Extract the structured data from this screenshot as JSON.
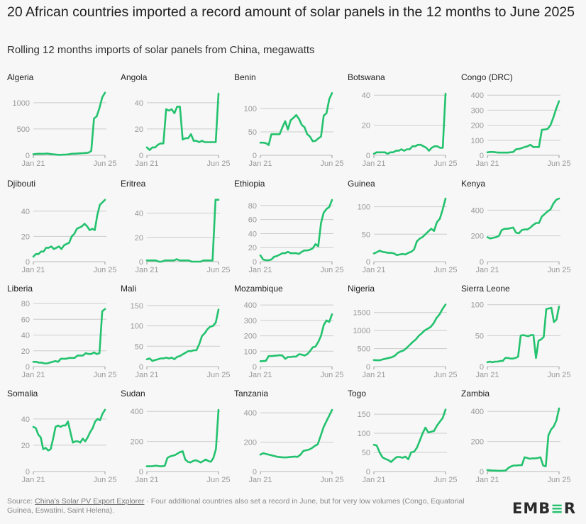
{
  "title": "20 African countries imported a record amount of solar panels in the 12 months to June 2025",
  "subtitle": "Rolling 12 months imports of solar panels from China, megawatts",
  "footer": {
    "source_prefix": "Source: ",
    "source_link": "China's Solar PV Export Explorer",
    "note": " · Four additional countries also set a record in June, but for very low volumes (Congo, Equatorial Guinea, Eswatini, Saint Helena)."
  },
  "logo": {
    "pre": "EMB",
    "mid": "≡",
    "post": "R"
  },
  "colors": {
    "line": "#23c26e",
    "grid": "#cccccc",
    "tick": "#999999",
    "background": "#f7f7f7"
  },
  "chart_data": {
    "type": "line",
    "layout": "small-multiples",
    "x_start": "Jan 21",
    "x_end": "Jun 25",
    "x_tick_labels": [
      "Jan 21",
      "Jun 25"
    ],
    "unit": "MW",
    "panels": [
      {
        "name": "Algeria",
        "yticks": [
          0,
          500,
          1000
        ],
        "ymax": 1200,
        "values": [
          20,
          25,
          30,
          28,
          30,
          32,
          25,
          20,
          15,
          10,
          10,
          12,
          15,
          20,
          30,
          30,
          35,
          38,
          40,
          45,
          50,
          80,
          700,
          740,
          900,
          1100,
          1190
        ]
      },
      {
        "name": "Angola",
        "yticks": [
          0,
          20,
          40
        ],
        "ymax": 48,
        "values": [
          6,
          4,
          6,
          6,
          8,
          9,
          9,
          35,
          34,
          35,
          32,
          37,
          37,
          12,
          13,
          13,
          16,
          11,
          11,
          10,
          11,
          10,
          10,
          10,
          10,
          10,
          47
        ]
      },
      {
        "name": "Benin",
        "yticks": [
          0,
          50,
          100
        ],
        "ymax": 135,
        "values": [
          27,
          27,
          26,
          22,
          45,
          45,
          45,
          45,
          60,
          73,
          55,
          75,
          80,
          86,
          78,
          65,
          60,
          45,
          40,
          30,
          31,
          36,
          40,
          85,
          90,
          120,
          133
        ]
      },
      {
        "name": "Botswana",
        "yticks": [
          0,
          20,
          40
        ],
        "ymax": 42,
        "values": [
          1,
          2,
          2,
          2,
          2,
          1,
          2,
          2,
          3,
          3,
          4,
          3,
          4,
          4,
          6,
          6,
          7,
          7,
          6,
          5,
          3,
          5,
          6,
          6,
          5,
          5,
          41
        ]
      },
      {
        "name": "Congo (DRC)",
        "yticks": [
          0,
          100,
          200,
          300,
          400
        ],
        "ymax": 420,
        "values": [
          20,
          22,
          22,
          20,
          18,
          18,
          18,
          18,
          20,
          22,
          40,
          42,
          48,
          55,
          60,
          70,
          55,
          55,
          55,
          170,
          172,
          175,
          200,
          250,
          310,
          360
        ]
      },
      {
        "name": "Djibouti",
        "yticks": [
          0,
          20,
          40
        ],
        "ymax": 50,
        "values": [
          4,
          6,
          6,
          8,
          8,
          11,
          11,
          12,
          10,
          11,
          12,
          10,
          13,
          14,
          15,
          20,
          22,
          26,
          27,
          28,
          30,
          28,
          25,
          26,
          25,
          37,
          45,
          47,
          49
        ]
      },
      {
        "name": "Eritrea",
        "yticks": [
          0,
          20,
          40
        ],
        "ymax": 52,
        "values": [
          1,
          1,
          1,
          1,
          0,
          0,
          1,
          1,
          1,
          1,
          2,
          1,
          1,
          1,
          1,
          0,
          0,
          0,
          0,
          1,
          1,
          1,
          1,
          51,
          51
        ]
      },
      {
        "name": "Ethiopia",
        "yticks": [
          0,
          20,
          40,
          60,
          80
        ],
        "ymax": 90,
        "values": [
          9,
          3,
          2,
          2,
          3,
          7,
          8,
          10,
          12,
          12,
          14,
          12,
          12,
          12,
          11,
          14,
          16,
          16,
          17,
          19,
          25,
          22,
          55,
          70,
          75,
          78,
          88
        ]
      },
      {
        "name": "Guinea",
        "yticks": [
          0,
          50,
          100
        ],
        "ymax": 115,
        "values": [
          15,
          17,
          20,
          18,
          17,
          16,
          16,
          15,
          12,
          13,
          14,
          13,
          16,
          18,
          22,
          37,
          42,
          45,
          50,
          55,
          60,
          56,
          72,
          78,
          95,
          115
        ]
      },
      {
        "name": "Kenya",
        "yticks": [
          0,
          200,
          400
        ],
        "ymax": 490,
        "values": [
          190,
          180,
          185,
          190,
          200,
          245,
          255,
          255,
          260,
          265,
          225,
          220,
          245,
          250,
          250,
          265,
          285,
          300,
          300,
          350,
          370,
          390,
          405,
          450,
          480,
          490
        ]
      },
      {
        "name": "Liberia",
        "yticks": [
          0,
          20,
          40,
          60,
          80
        ],
        "ymax": 80,
        "values": [
          6,
          6,
          5,
          5,
          4,
          4,
          5,
          6,
          7,
          6,
          10,
          10,
          10,
          11,
          11,
          11,
          14,
          14,
          14,
          17,
          16,
          16,
          18,
          16,
          17,
          70,
          73
        ]
      },
      {
        "name": "Mali",
        "yticks": [
          0,
          50,
          100,
          150
        ],
        "ymax": 155,
        "values": [
          18,
          20,
          14,
          16,
          18,
          20,
          20,
          22,
          20,
          22,
          18,
          24,
          26,
          30,
          34,
          38,
          38,
          40,
          40,
          55,
          75,
          82,
          92,
          98,
          100,
          108,
          140
        ]
      },
      {
        "name": "Mozambique",
        "yticks": [
          0,
          100,
          200,
          300,
          400
        ],
        "ymax": 410,
        "values": [
          35,
          36,
          38,
          68,
          68,
          70,
          72,
          74,
          72,
          50,
          62,
          62,
          65,
          65,
          80,
          78,
          72,
          80,
          100,
          125,
          130,
          160,
          200,
          270,
          300,
          290,
          340
        ]
      },
      {
        "name": "Nigeria",
        "yticks": [
          0,
          500,
          1000,
          1500
        ],
        "ymax": 1750,
        "values": [
          180,
          175,
          175,
          200,
          220,
          240,
          260,
          300,
          380,
          420,
          450,
          520,
          600,
          680,
          750,
          850,
          920,
          1000,
          1050,
          1100,
          1200,
          1350,
          1450,
          1600,
          1720
        ]
      },
      {
        "name": "Sierra Leone",
        "yticks": [
          0,
          50,
          100
        ],
        "ymax": 102,
        "values": [
          7,
          8,
          7,
          8,
          8,
          9,
          9,
          14,
          14,
          13,
          13,
          14,
          16,
          50,
          51,
          50,
          49,
          51,
          51,
          14,
          42,
          44,
          48,
          93,
          94,
          95,
          72,
          76,
          97
        ]
      },
      {
        "name": "Somalia",
        "yticks": [
          0,
          20,
          40
        ],
        "ymax": 48,
        "values": [
          34,
          33,
          28,
          26,
          17,
          18,
          16,
          17,
          25,
          34,
          35,
          34,
          35,
          35,
          38,
          30,
          22,
          23,
          23,
          22,
          25,
          23,
          26,
          30,
          33,
          38,
          40,
          39,
          44,
          47
        ]
      },
      {
        "name": "Sudan",
        "yticks": [
          0,
          200,
          400
        ],
        "ymax": 420,
        "values": [
          35,
          35,
          35,
          38,
          38,
          35,
          35,
          38,
          90,
          100,
          105,
          110,
          120,
          130,
          135,
          80,
          65,
          60,
          70,
          75,
          70,
          60,
          70,
          80,
          70,
          65,
          90,
          150,
          410
        ]
      },
      {
        "name": "Tanzania",
        "yticks": [
          0,
          200,
          400
        ],
        "ymax": 430,
        "values": [
          115,
          125,
          120,
          115,
          110,
          105,
          100,
          98,
          96,
          96,
          98,
          100,
          102,
          100,
          115,
          140,
          145,
          150,
          160,
          175,
          185,
          240,
          300,
          340,
          380,
          420
        ]
      },
      {
        "name": "Togo",
        "yticks": [
          0,
          50,
          100,
          150
        ],
        "ymax": 165,
        "values": [
          70,
          68,
          50,
          37,
          33,
          30,
          25,
          32,
          38,
          38,
          36,
          39,
          32,
          50,
          52,
          62,
          80,
          100,
          115,
          102,
          104,
          106,
          120,
          130,
          140,
          162
        ]
      },
      {
        "name": "Zambia",
        "yticks": [
          0,
          200,
          400
        ],
        "ymax": 420,
        "values": [
          10,
          8,
          6,
          6,
          5,
          5,
          5,
          8,
          25,
          35,
          40,
          40,
          42,
          42,
          95,
          90,
          85,
          88,
          88,
          90,
          95,
          40,
          35,
          240,
          280,
          300,
          340,
          420
        ]
      }
    ]
  }
}
